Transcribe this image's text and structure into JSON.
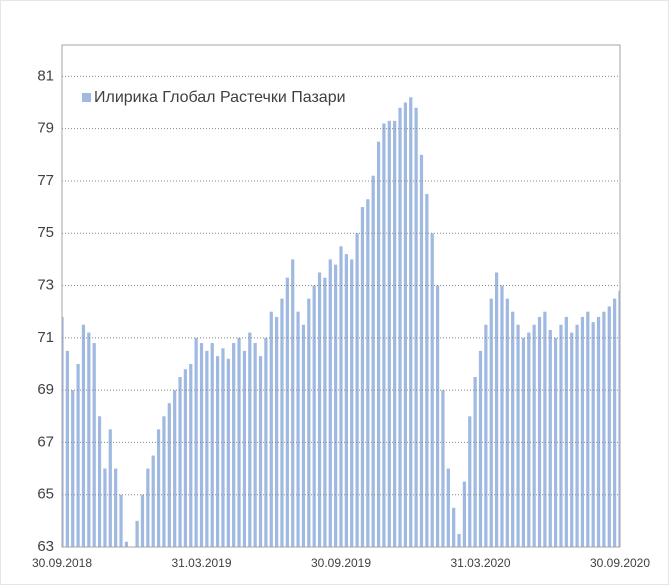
{
  "chart_data": {
    "type": "bar",
    "legend": "Илирика Глобал Растечки Пазари",
    "color": "#9fb9e0",
    "categories": [
      "30.09.2018",
      null,
      null,
      null,
      null,
      null,
      null,
      null,
      null,
      null,
      null,
      null,
      null,
      null,
      null,
      null,
      null,
      null,
      null,
      null,
      null,
      null,
      null,
      null,
      null,
      null,
      "31.03.2019",
      null,
      null,
      null,
      null,
      null,
      null,
      null,
      null,
      null,
      null,
      null,
      null,
      null,
      null,
      null,
      null,
      null,
      null,
      null,
      null,
      null,
      null,
      null,
      null,
      null,
      "30.09.2019",
      null,
      null,
      null,
      null,
      null,
      null,
      null,
      null,
      null,
      null,
      null,
      null,
      null,
      null,
      null,
      null,
      null,
      null,
      null,
      null,
      null,
      null,
      null,
      null,
      null,
      "31.03.2020",
      null,
      null,
      null,
      null,
      null,
      null,
      null,
      null,
      null,
      null,
      null,
      null,
      null,
      null,
      null,
      null,
      null,
      null,
      null,
      null,
      null,
      null,
      null,
      null,
      null,
      "30.09.2020"
    ],
    "values": [
      71.8,
      70.5,
      69,
      70,
      71.5,
      71.2,
      70.8,
      68,
      66,
      67.5,
      66,
      65,
      63.2,
      63,
      64,
      65,
      66,
      66.5,
      67.5,
      68,
      68.5,
      69,
      69.5,
      69.8,
      70,
      71,
      70.8,
      70.5,
      70.8,
      70.3,
      70.6,
      70.2,
      70.8,
      71,
      70.5,
      71.2,
      70.8,
      70.3,
      71,
      72,
      71.8,
      72.5,
      73.3,
      74,
      72,
      71.5,
      72.5,
      73,
      73.5,
      73.3,
      74,
      73.8,
      74.5,
      74.2,
      74,
      75,
      76,
      76.3,
      77.2,
      78.5,
      79.2,
      79.3,
      79.3,
      79.8,
      80,
      80.2,
      79.8,
      78,
      76.5,
      75,
      73,
      69,
      66,
      64.5,
      63.5,
      65.5,
      68,
      69.5,
      70.5,
      71.5,
      72.5,
      73.5,
      73,
      72.5,
      72,
      71.5,
      71,
      71.2,
      71.5,
      71.8,
      72,
      71.3,
      71,
      71.5,
      71.8,
      71.2,
      71.5,
      71.8,
      72,
      71.6,
      71.8,
      72,
      72.2,
      72.5,
      72.8
    ],
    "ylim": [
      63,
      82.2
    ],
    "yticks": [
      63,
      65,
      67,
      69,
      71,
      73,
      75,
      77,
      79,
      81
    ],
    "grid": true
  }
}
